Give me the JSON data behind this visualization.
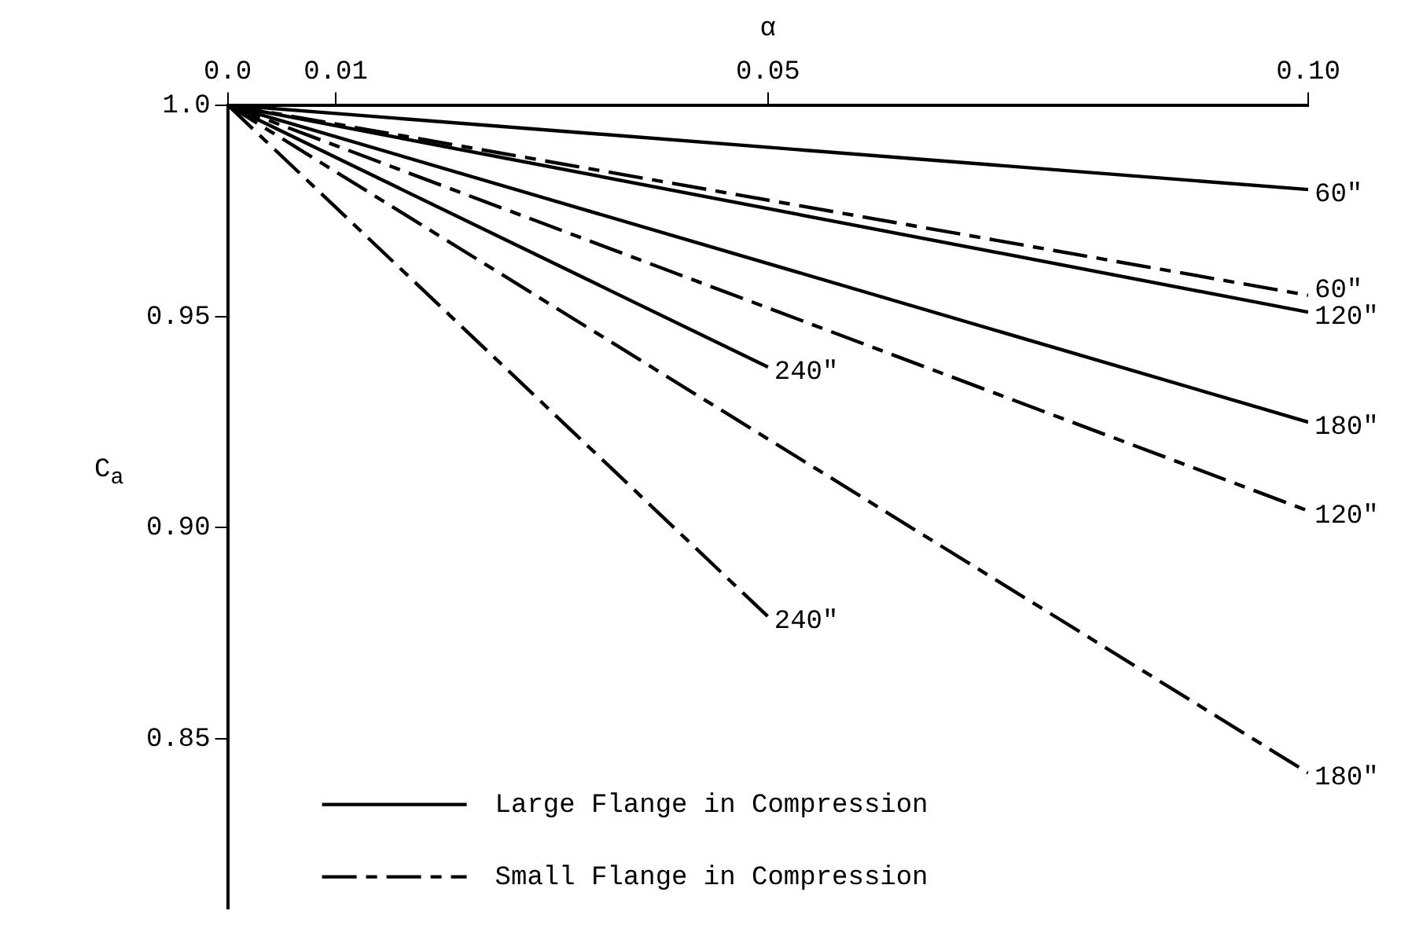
{
  "chart_data": {
    "type": "line",
    "xlabel": "α",
    "ylabel": "C$_{a}$",
    "xlim": [
      0,
      0.1
    ],
    "xticks": [
      {
        "value": 0,
        "label": "0.0"
      },
      {
        "value": 0.01,
        "label": "0.01"
      },
      {
        "value": 0.05,
        "label": "0.05"
      },
      {
        "value": 0.1,
        "label": "0.10"
      }
    ],
    "ylim": [
      0.81,
      1.0
    ],
    "yticks": [
      {
        "value": 1.0,
        "label": "1.0"
      },
      0.95,
      {
        "value": 0.9,
        "label": "0.90"
      },
      0.85
    ],
    "grid": false,
    "legend": false,
    "marker": "none",
    "series": [
      {
        "name": "60\"",
        "color": "#000000",
        "line_style": "solid",
        "x": [
          0,
          0.1
        ],
        "values": [
          1.0,
          0.98
        ]
      },
      {
        "name": "60\"",
        "color": "#000000",
        "line_style": "dashed",
        "x": [
          0,
          0.1
        ],
        "values": [
          1.0,
          0.955
        ]
      },
      {
        "name": "120\"",
        "color": "#000000",
        "line_style": "solid",
        "x": [
          0,
          0.1
        ],
        "values": [
          1.0,
          0.951
        ]
      },
      {
        "name": "180\"",
        "color": "#000000",
        "line_style": "solid",
        "x": [
          0,
          0.1
        ],
        "values": [
          1.0,
          0.925
        ]
      },
      {
        "name": "240\"",
        "color": "#000000",
        "line_style": "solid",
        "x": [
          0,
          0.05
        ],
        "values": [
          1.0,
          0.938
        ]
      },
      {
        "name": "120\"",
        "color": "#000000",
        "line_style": "dashed",
        "x": [
          0,
          0.1
        ],
        "values": [
          1.0,
          0.904
        ]
      },
      {
        "name": "240\"",
        "color": "#000000",
        "line_style": "dashed",
        "x": [
          0,
          0.05
        ],
        "values": [
          1.0,
          0.879
        ]
      },
      {
        "name": "180\"",
        "color": "#000000",
        "line_style": "dashed",
        "x": [
          0,
          0.1
        ],
        "values": [
          1.0,
          0.842
        ]
      }
    ],
    "annotations": [
      "Large Flange in Compression",
      "Small Flange in Compression"
    ]
  }
}
